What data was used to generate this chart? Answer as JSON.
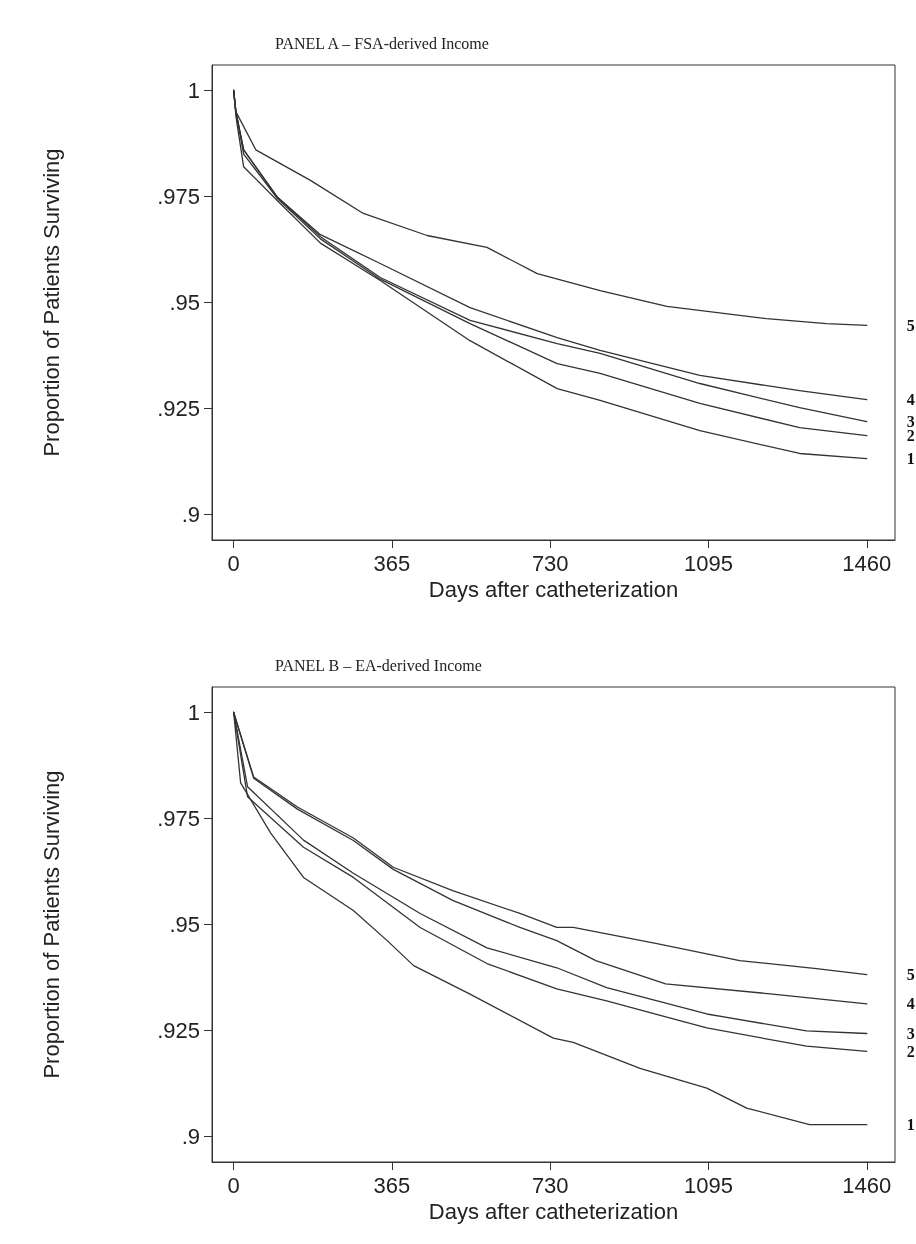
{
  "chart_data": [
    {
      "type": "line",
      "title": "PANEL A – FSA-derived Income",
      "xlabel": "Days after catheterization",
      "ylabel": "Proportion of Patients Surviving",
      "xlim": [
        -50,
        1525
      ],
      "ylim": [
        0.894,
        1.006
      ],
      "xticks": [
        0,
        365,
        730,
        1095,
        1460
      ],
      "yticks": [
        {
          "value": 0.9,
          "label": ".9"
        },
        {
          "value": 0.925,
          "label": ".925"
        },
        {
          "value": 0.95,
          "label": ".95"
        },
        {
          "value": 0.975,
          "label": ".975"
        },
        1
      ],
      "grid": false,
      "legend": false,
      "marker": "none",
      "line_style": "solid",
      "series": [
        {
          "name": "5",
          "color": "#333333",
          "x": [
            0,
            5,
            51,
            177,
            299,
            446,
            584,
            700,
            845,
            999,
            1229,
            1367,
            1460
          ],
          "values": [
            1,
            0.995,
            0.986,
            0.9788,
            0.971,
            0.9658,
            0.963,
            0.9568,
            0.9528,
            0.9491,
            0.9462,
            0.945,
            0.9446
          ]
        },
        {
          "name": "4",
          "color": "#333333",
          "x": [
            0,
            5,
            23,
            101,
            200,
            338,
            545,
            746,
            845,
            1075,
            1305,
            1460
          ],
          "values": [
            1,
            0.995,
            0.986,
            0.9748,
            0.966,
            0.9592,
            0.9488,
            0.9417,
            0.9387,
            0.9328,
            0.9292,
            0.9271
          ]
        },
        {
          "name": "3",
          "color": "#333333",
          "x": [
            0,
            5,
            23,
            101,
            200,
            338,
            545,
            746,
            845,
            1075,
            1305,
            1460
          ],
          "values": [
            1,
            0.995,
            0.986,
            0.9748,
            0.9655,
            0.9559,
            0.9458,
            0.9403,
            0.938,
            0.9309,
            0.9252,
            0.9219
          ]
        },
        {
          "name": "2",
          "color": "#333333",
          "x": [
            0,
            5,
            23,
            101,
            200,
            338,
            545,
            746,
            845,
            1075,
            1305,
            1460
          ],
          "values": [
            1,
            0.995,
            0.985,
            0.9745,
            0.965,
            0.9555,
            0.945,
            0.9356,
            0.9333,
            0.9262,
            0.9205,
            0.9186
          ]
        },
        {
          "name": "1",
          "color": "#333333",
          "x": [
            0,
            5,
            23,
            101,
            200,
            338,
            545,
            746,
            845,
            1075,
            1305,
            1460
          ],
          "values": [
            1,
            0.994,
            0.982,
            0.974,
            0.964,
            0.9552,
            0.941,
            0.9297,
            0.9269,
            0.9198,
            0.9144,
            0.9132
          ]
        }
      ]
    },
    {
      "type": "line",
      "title": "PANEL B – EA-derived Income",
      "xlabel": "Days after catheterization",
      "ylabel": "Proportion of Patients Surviving",
      "xlim": [
        -50,
        1525
      ],
      "ylim": [
        0.894,
        1.006
      ],
      "xticks": [
        0,
        365,
        730,
        1095,
        1460
      ],
      "yticks": [
        {
          "value": 0.9,
          "label": ".9"
        },
        {
          "value": 0.925,
          "label": ".925"
        },
        {
          "value": 0.95,
          "label": ".95"
        },
        {
          "value": 0.975,
          "label": ".975"
        },
        1
      ],
      "grid": false,
      "legend": false,
      "marker": "none",
      "line_style": "solid",
      "series": [
        {
          "name": "5",
          "color": "#333333",
          "x": [
            0,
            46,
            147,
            276,
            368,
            505,
            660,
            745,
            783,
            976,
            1167,
            1344,
            1460
          ],
          "values": [
            1,
            0.9848,
            0.9777,
            0.9704,
            0.9635,
            0.958,
            0.9526,
            0.9493,
            0.9493,
            0.9455,
            0.9415,
            0.9396,
            0.9382
          ]
        },
        {
          "name": "4",
          "color": "#333333",
          "x": [
            0,
            46,
            147,
            276,
            368,
            505,
            660,
            745,
            835,
            996,
            1243,
            1460
          ],
          "values": [
            1,
            0.9845,
            0.9772,
            0.9698,
            0.963,
            0.9557,
            0.9493,
            0.9462,
            0.9415,
            0.936,
            0.9336,
            0.9313
          ]
        },
        {
          "name": "3",
          "color": "#333333",
          "x": [
            0,
            32,
            161,
            276,
            430,
            584,
            745,
            860,
            1091,
            1321,
            1460
          ],
          "values": [
            1,
            0.9825,
            0.9699,
            0.9621,
            0.9526,
            0.9445,
            0.9398,
            0.9351,
            0.9289,
            0.9249,
            0.9243
          ]
        },
        {
          "name": "2",
          "color": "#333333",
          "x": [
            0,
            32,
            161,
            276,
            430,
            584,
            745,
            860,
            1091,
            1321,
            1460
          ],
          "values": [
            1,
            0.9801,
            0.9682,
            0.9611,
            0.9493,
            0.9408,
            0.9348,
            0.932,
            0.9256,
            0.9213,
            0.9201
          ]
        },
        {
          "name": "1",
          "color": "#333333",
          "x": [
            0,
            16,
            85,
            161,
            276,
            354,
            415,
            545,
            737,
            783,
            937,
            1091,
            1183,
            1328,
            1460
          ],
          "values": [
            1,
            0.9834,
            0.9716,
            0.9611,
            0.9533,
            0.9462,
            0.9403,
            0.9336,
            0.9232,
            0.9222,
            0.9161,
            0.9114,
            0.9067,
            0.9028,
            0.9028
          ]
        }
      ]
    }
  ]
}
